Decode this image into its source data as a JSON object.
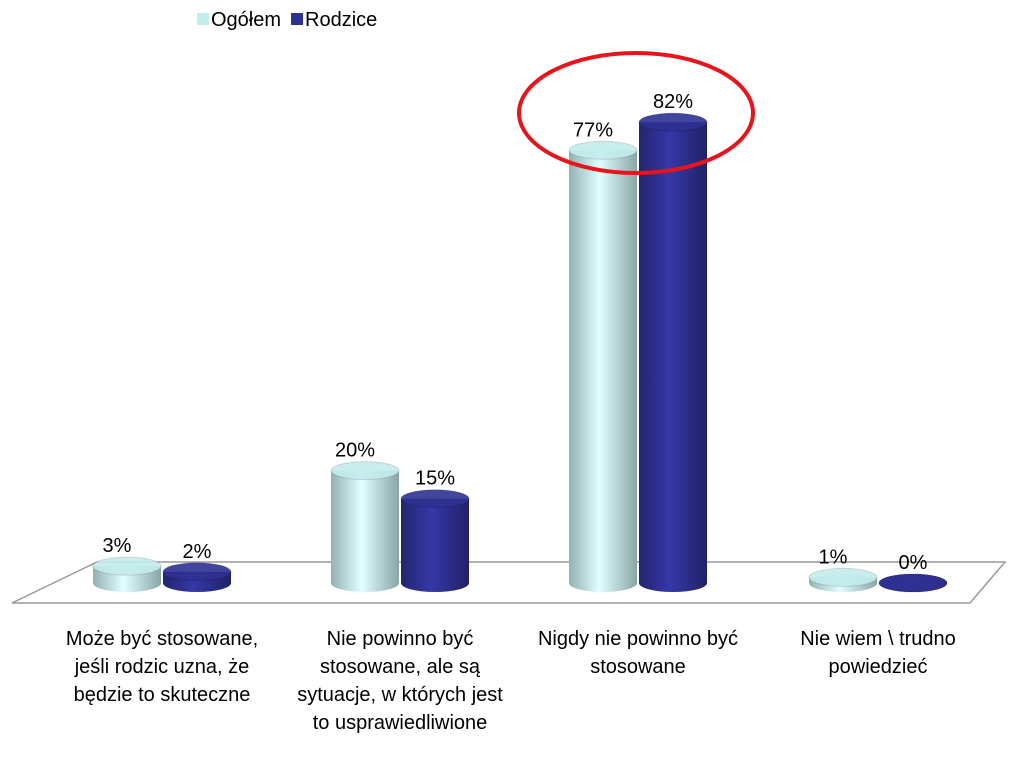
{
  "chart_data": {
    "type": "bar3d",
    "categories": [
      "Może być stosowane, jeśli rodzic uzna, że będzie to skuteczne",
      "Nie powinno być stosowane, ale są sytuacje, w których jest to usprawiedliwione",
      "Nigdy nie powinno być stosowane",
      "Nie wiem \\ trudno powiedzieć"
    ],
    "series": [
      {
        "name": "Ogółem",
        "color": "#c4ecec",
        "values": [
          3,
          20,
          77,
          1
        ],
        "value_labels": [
          "3%",
          "20%",
          "77%",
          "1%"
        ]
      },
      {
        "name": "Rodzice",
        "color": "#2e3192",
        "values": [
          2,
          15,
          82,
          0
        ],
        "value_labels": [
          "2%",
          "15%",
          "82%",
          "0%"
        ]
      }
    ],
    "legend": "top"
  }
}
